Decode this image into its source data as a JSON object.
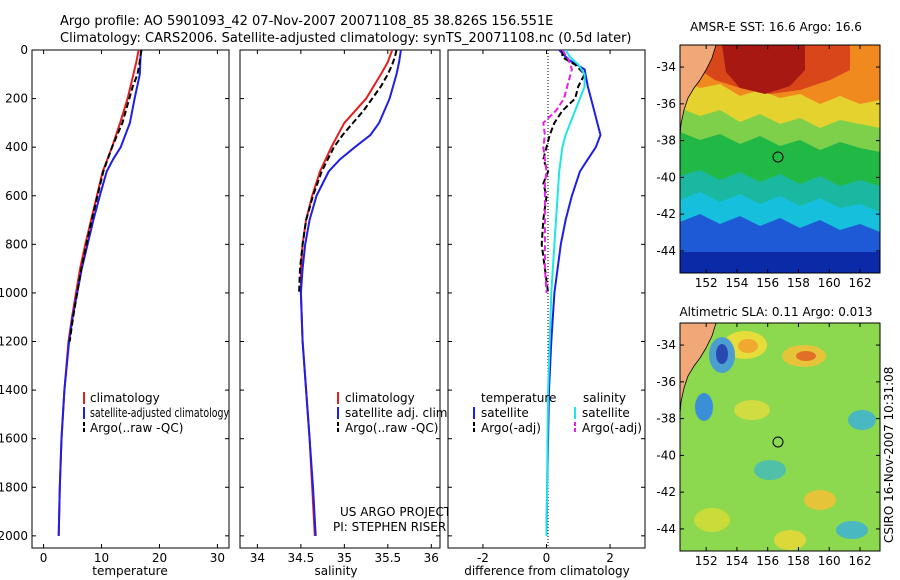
{
  "header": {
    "line1": "Argo profile: AO 5901093_42 07-Nov-2007 20071108_85 38.826S 156.551E",
    "line2": "Climatology: CARS2006. Satellite-adjusted climatology: synTS_20071108.nc (0.5d later)"
  },
  "side_label": "CSIRO 16-Nov-2007 10:31:08",
  "colors": {
    "climatology": "#e41e1e",
    "satellite": "#1e1ee6",
    "argo": "#000000",
    "temp_satellite": "#1e1ee6",
    "sal_satellite": "#1ee6e6",
    "sal_argo": "#e61ee6",
    "land": "#f0a878"
  },
  "chart_data": [
    {
      "id": "temperature",
      "type": "line",
      "xlabel": "temperature",
      "ylabel": "",
      "xlim": [
        -2,
        32
      ],
      "ylim": [
        0,
        2050
      ],
      "xticks": [
        0,
        10,
        20,
        30
      ],
      "yticks": [
        0,
        200,
        400,
        600,
        800,
        1000,
        1200,
        1400,
        1600,
        1800,
        2000
      ],
      "legend": [
        "climatology",
        "satellite-adjusted climatology",
        "Argo(..raw -QC)"
      ],
      "series": [
        {
          "name": "climatology",
          "color": "#e41e1e",
          "dash": "",
          "depth": [
            0,
            50,
            100,
            200,
            300,
            400,
            500,
            600,
            700,
            800,
            900,
            1000,
            1100,
            1200,
            1400,
            1600,
            1800,
            2000
          ],
          "values": [
            16.4,
            16.0,
            15.5,
            14.5,
            13.2,
            11.8,
            10.2,
            9.2,
            8.2,
            7.2,
            6.3,
            5.6,
            4.9,
            4.3,
            3.6,
            3.1,
            2.8,
            2.6
          ]
        },
        {
          "name": "satellite-adjusted climatology",
          "color": "#1e1ee6",
          "dash": "",
          "depth": [
            0,
            50,
            100,
            200,
            300,
            400,
            450,
            500,
            600,
            700,
            800,
            900,
            1000,
            1100,
            1200,
            1400,
            1600,
            1800,
            2000
          ],
          "values": [
            16.8,
            16.7,
            16.6,
            15.7,
            14.9,
            13.3,
            12.0,
            10.9,
            9.7,
            8.6,
            7.6,
            6.6,
            5.8,
            5.0,
            4.4,
            3.6,
            3.1,
            2.8,
            2.6
          ]
        },
        {
          "name": "Argo(..raw -QC)",
          "color": "#000000",
          "dash": "6,3",
          "depth": [
            0,
            30,
            60,
            100,
            150,
            200,
            300,
            400,
            500,
            600,
            700,
            800,
            900,
            1000,
            1100,
            1200
          ],
          "values": [
            16.9,
            16.7,
            16.5,
            16.2,
            15.4,
            14.8,
            13.6,
            11.8,
            10.3,
            9.3,
            8.3,
            7.4,
            6.5,
            5.8,
            5.1,
            4.5
          ]
        }
      ]
    },
    {
      "id": "salinity",
      "type": "line",
      "xlabel": "salinity",
      "ylabel": "",
      "xlim": [
        33.8,
        36.1
      ],
      "ylim": [
        0,
        2050
      ],
      "xticks": [
        34,
        34.5,
        35,
        35.5,
        36
      ],
      "xticklabels": [
        "34",
        "34.5",
        "35",
        "35.5",
        "36"
      ],
      "legend": [
        "climatology",
        "satellite adj. clim.",
        "Argo(..raw -QC)"
      ],
      "annotation": [
        "US ARGO PROJECT",
        "PI: STEPHEN RISER"
      ],
      "series": [
        {
          "name": "climatology",
          "color": "#e41e1e",
          "dash": "",
          "depth": [
            0,
            50,
            100,
            200,
            300,
            400,
            500,
            600,
            700,
            800,
            900,
            1000,
            1200,
            1400,
            1600,
            1800,
            2000
          ],
          "values": [
            35.55,
            35.5,
            35.42,
            35.25,
            35.0,
            34.85,
            34.72,
            34.63,
            34.56,
            34.52,
            34.5,
            34.5,
            34.52,
            34.56,
            34.6,
            34.63,
            34.66
          ]
        },
        {
          "name": "satellite adj. clim.",
          "color": "#1e1ee6",
          "dash": "",
          "depth": [
            0,
            50,
            100,
            200,
            300,
            350,
            400,
            450,
            500,
            600,
            700,
            800,
            900,
            1000,
            1200,
            1400,
            1600,
            1800,
            2000
          ],
          "values": [
            35.65,
            35.63,
            35.6,
            35.52,
            35.4,
            35.3,
            35.12,
            34.95,
            34.82,
            34.68,
            34.6,
            34.55,
            34.52,
            34.5,
            34.52,
            34.56,
            34.6,
            34.64,
            34.67
          ]
        },
        {
          "name": "Argo(..raw -QC)",
          "color": "#000000",
          "dash": "6,3",
          "depth": [
            0,
            30,
            60,
            100,
            150,
            200,
            250,
            300,
            350,
            400,
            500,
            600,
            700,
            800,
            900,
            1000
          ],
          "values": [
            35.6,
            35.58,
            35.55,
            35.5,
            35.42,
            35.32,
            35.22,
            35.1,
            34.98,
            34.88,
            34.74,
            34.64,
            34.56,
            34.52,
            34.49,
            34.48
          ]
        }
      ]
    },
    {
      "id": "difference",
      "type": "line",
      "xlabel": "difference from climatology",
      "ylabel": "",
      "xlim": [
        -3.1,
        3.1
      ],
      "ylim": [
        0,
        2050
      ],
      "xticks": [
        -2,
        0,
        2
      ],
      "legend_headers": [
        "temperature",
        "salinity"
      ],
      "legend": [
        "satellite",
        "Argo(-adj)",
        "satellite",
        "Argo(-adj)"
      ],
      "series": [
        {
          "name": "temperature satellite",
          "color": "#1e1ee6",
          "dash": "",
          "depth": [
            0,
            40,
            80,
            150,
            250,
            300,
            350,
            400,
            450,
            500,
            600,
            700,
            800,
            900,
            1000,
            1200,
            1400,
            1600,
            1800,
            2000
          ],
          "values": [
            0.4,
            0.7,
            1.2,
            1.3,
            1.5,
            1.6,
            1.7,
            1.55,
            1.3,
            1.05,
            0.8,
            0.6,
            0.45,
            0.35,
            0.25,
            0.15,
            0.08,
            0.05,
            0.02,
            0.0
          ]
        },
        {
          "name": "temperature Argo(-adj)",
          "color": "#000000",
          "dash": "6,3",
          "depth": [
            0,
            30,
            60,
            100,
            150,
            200,
            250,
            300,
            350,
            400,
            450,
            500,
            550,
            600,
            700,
            800,
            900,
            1000
          ],
          "values": [
            0.5,
            0.5,
            0.9,
            1.2,
            1.0,
            0.9,
            0.5,
            0.25,
            0.1,
            0.0,
            -0.1,
            0.05,
            -0.1,
            0.0,
            -0.1,
            -0.15,
            -0.05,
            0.05
          ]
        },
        {
          "name": "salinity satellite",
          "color": "#1ee6e6",
          "dash": "",
          "depth": [
            0,
            30,
            60,
            100,
            150,
            200,
            250,
            300,
            350,
            400,
            500,
            600,
            700,
            800,
            1000,
            1200,
            1400,
            1600,
            1800,
            2000
          ],
          "values": [
            0.6,
            0.75,
            1.0,
            1.2,
            1.2,
            1.05,
            0.9,
            0.75,
            0.6,
            0.5,
            0.4,
            0.35,
            0.3,
            0.25,
            0.15,
            0.1,
            0.05,
            0.03,
            0.02,
            0.0
          ]
        },
        {
          "name": "salinity Argo(-adj)",
          "color": "#e61ee6",
          "dash": "6,3",
          "depth": [
            0,
            40,
            80,
            150,
            200,
            250,
            300,
            350,
            400,
            450,
            500,
            550,
            600,
            700,
            800,
            900,
            1000
          ],
          "values": [
            0.5,
            0.7,
            0.8,
            0.65,
            0.55,
            0.3,
            -0.1,
            -0.05,
            -0.1,
            -0.05,
            0.0,
            -0.05,
            -0.05,
            -0.05,
            -0.05,
            -0.05,
            0.0
          ]
        }
      ]
    },
    {
      "id": "sst_map",
      "type": "heatmap",
      "title": "AMSR-E SST: 16.6 Argo: 16.6",
      "xlim": [
        150.3,
        163.3
      ],
      "ylim": [
        -45.2,
        -32.8
      ],
      "xticks": [
        152,
        154,
        156,
        158,
        160,
        162
      ],
      "yticks": [
        -34,
        -36,
        -38,
        -40,
        -42,
        -44
      ],
      "marker": {
        "lon": 156.55,
        "lat": -38.83
      }
    },
    {
      "id": "sla_map",
      "type": "heatmap",
      "title": "Altimetric SLA: 0.11 Argo: 0.013",
      "xlim": [
        150.3,
        163.3
      ],
      "ylim": [
        -45.2,
        -32.8
      ],
      "xticks": [
        152,
        154,
        156,
        158,
        160,
        162
      ],
      "yticks": [
        -34,
        -36,
        -38,
        -40,
        -42,
        -44
      ],
      "marker": {
        "lon": 156.55,
        "lat": -38.83
      }
    }
  ]
}
